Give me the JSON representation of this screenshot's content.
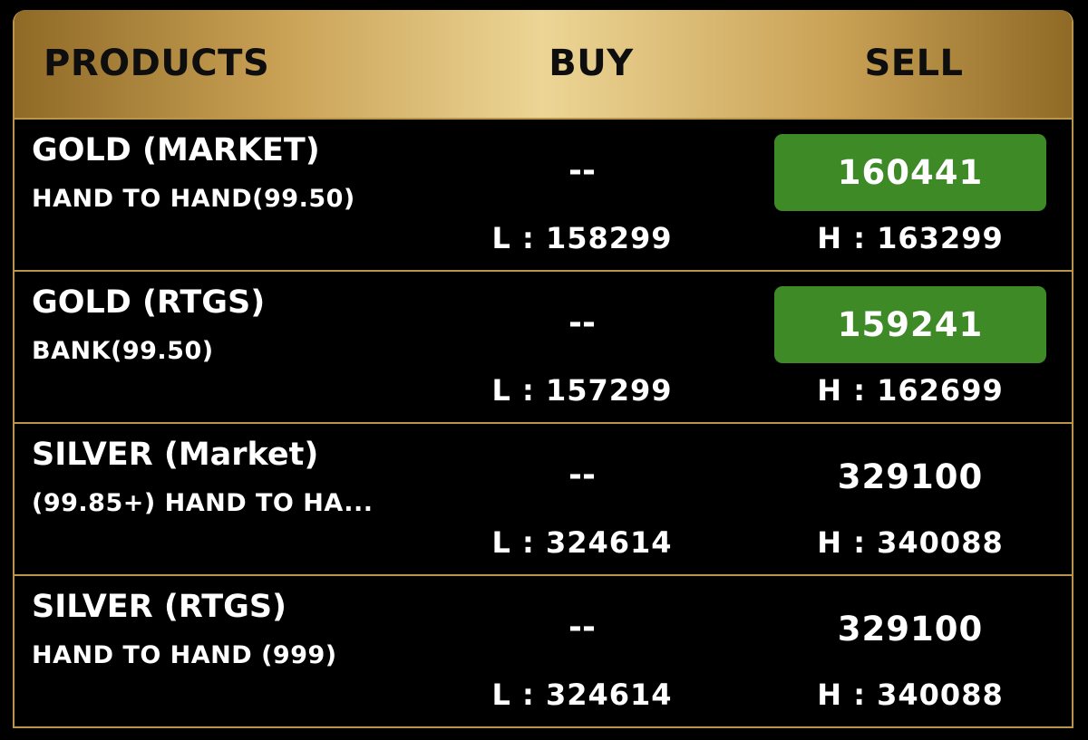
{
  "header": {
    "products": "PRODUCTS",
    "buy": "BUY",
    "sell": "SELL"
  },
  "colors": {
    "gold_border": "#b8954a",
    "sell_highlight": "#3d8a27",
    "background": "#000000"
  },
  "rows": [
    {
      "name": "GOLD (MARKET)",
      "sub": "HAND TO HAND(99.50)",
      "buy": "--",
      "low": "L : 158299",
      "sell": "160441",
      "high": "H : 163299",
      "sell_highlighted": true
    },
    {
      "name": "GOLD (RTGS)",
      "sub": "BANK(99.50)",
      "buy": "--",
      "low": "L : 157299",
      "sell": "159241",
      "high": "H : 162699",
      "sell_highlighted": true
    },
    {
      "name": "SILVER (Market)",
      "sub": "(99.85+) HAND TO HA...",
      "buy": "--",
      "low": "L : 324614",
      "sell": "329100",
      "high": "H : 340088",
      "sell_highlighted": false
    },
    {
      "name": "SILVER (RTGS)",
      "sub": "HAND TO HAND (999)",
      "buy": "--",
      "low": "L : 324614",
      "sell": "329100",
      "high": "H : 340088",
      "sell_highlighted": false
    }
  ]
}
